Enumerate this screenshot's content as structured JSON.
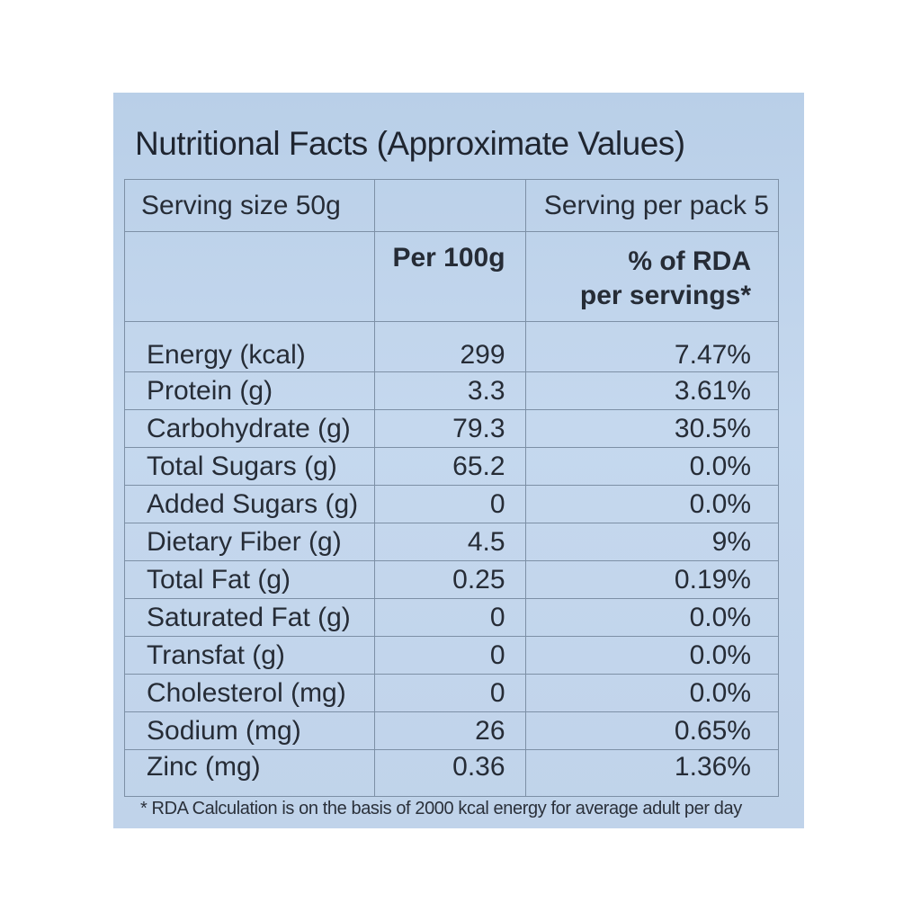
{
  "label": {
    "title": "Nutritional Facts (Approximate Values)",
    "serving_size": "Serving size 50g",
    "serving_per_pack": "Serving per pack 5",
    "col_per100": "Per 100g",
    "col_rda_line1": "% of RDA",
    "col_rda_line2": "per servings*",
    "rows": [
      {
        "name": "Energy (kcal)",
        "per100": "299",
        "rda": "7.47%"
      },
      {
        "name": "Protein (g)",
        "per100": "3.3",
        "rda": "3.61%"
      },
      {
        "name": "Carbohydrate (g)",
        "per100": "79.3",
        "rda": "30.5%"
      },
      {
        "name": "Total Sugars (g)",
        "per100": "65.2",
        "rda": "0.0%"
      },
      {
        "name": "Added Sugars (g)",
        "per100": "0",
        "rda": "0.0%"
      },
      {
        "name": "Dietary Fiber (g)",
        "per100": "4.5",
        "rda": "9%"
      },
      {
        "name": "Total Fat (g)",
        "per100": "0.25",
        "rda": "0.19%"
      },
      {
        "name": "Saturated Fat (g)",
        "per100": "0",
        "rda": "0.0%"
      },
      {
        "name": "Transfat (g)",
        "per100": "0",
        "rda": "0.0%"
      },
      {
        "name": "Cholesterol (mg)",
        "per100": "0",
        "rda": "0.0%"
      },
      {
        "name": "Sodium (mg)",
        "per100": "26",
        "rda": "0.65%"
      },
      {
        "name": "Zinc (mg)",
        "per100": "0.36",
        "rda": "1.36%"
      }
    ],
    "footnote": "* RDA Calculation is on the basis of 2000 kcal energy for average adult per day"
  }
}
